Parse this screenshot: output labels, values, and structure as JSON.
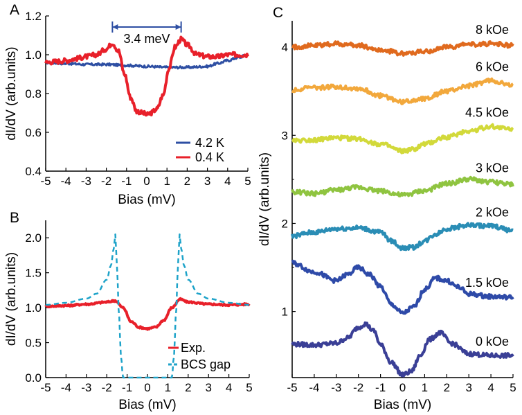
{
  "chart_data": [
    {
      "panel_label": "A",
      "type": "line",
      "xlabel": "Bias  (mV)",
      "ylabel": "dI/dV  (arb.units)",
      "xlim": [
        -5,
        5
      ],
      "ylim": [
        0.4,
        1.2
      ],
      "xticks": [
        "-5",
        "-4",
        "-3",
        "-2",
        "-1",
        "0",
        "1",
        "2",
        "3",
        "4",
        "5"
      ],
      "yticks": [
        "0.4",
        "0.6",
        "0.8",
        "1.0",
        "1.2"
      ],
      "annotation": "3.4 meV",
      "annotation_range": [
        -1.7,
        1.7
      ],
      "legend_position": "bottom-right",
      "series": [
        {
          "name": "4.2 K",
          "color": "#2e4fa3",
          "x": [
            -5,
            -4,
            -3,
            -2,
            -1,
            0,
            1,
            2,
            3,
            3.5,
            4,
            4.5,
            5
          ],
          "y": [
            0.96,
            0.955,
            0.95,
            0.95,
            0.945,
            0.94,
            0.935,
            0.935,
            0.94,
            0.955,
            0.97,
            0.985,
            1.0
          ]
        },
        {
          "name": "0.4 K",
          "color": "#e8202a",
          "x": [
            -5,
            -4.5,
            -4,
            -3.5,
            -3,
            -2.5,
            -2,
            -1.7,
            -1.4,
            -1.1,
            -0.8,
            -0.5,
            -0.2,
            0,
            0.2,
            0.5,
            0.8,
            1.1,
            1.4,
            1.7,
            2,
            2.5,
            3,
            3.5,
            4,
            4.5,
            5
          ],
          "y": [
            0.96,
            0.965,
            0.97,
            0.98,
            0.99,
            1.0,
            1.03,
            1.06,
            1.02,
            0.9,
            0.78,
            0.71,
            0.7,
            0.69,
            0.7,
            0.72,
            0.79,
            0.93,
            1.04,
            1.08,
            1.05,
            1.0,
            0.99,
            0.99,
            1.0,
            1.0,
            1.0
          ]
        }
      ]
    },
    {
      "panel_label": "B",
      "type": "line",
      "xlabel": "Bias  (mV)",
      "ylabel": "dI/dV  (arb.units)",
      "xlim": [
        -5,
        5
      ],
      "ylim": [
        0,
        2.25
      ],
      "xticks": [
        "-5",
        "-4",
        "-3",
        "-2",
        "-1",
        "0",
        "1",
        "2",
        "3",
        "4",
        "5"
      ],
      "yticks": [
        "0.0",
        "0.5",
        "1.0",
        "1.5",
        "2.0"
      ],
      "legend_position": "bottom-right",
      "series": [
        {
          "name": "Exp.",
          "color": "#e8202a",
          "x": [
            -5,
            -4,
            -3,
            -2,
            -1.6,
            -1.2,
            -0.8,
            -0.4,
            0,
            0.4,
            0.8,
            1.2,
            1.6,
            2,
            3,
            4,
            5
          ],
          "y": [
            1.02,
            1.03,
            1.05,
            1.08,
            1.1,
            1.0,
            0.8,
            0.72,
            0.7,
            0.72,
            0.82,
            1.0,
            1.12,
            1.08,
            1.05,
            1.04,
            1.05
          ]
        },
        {
          "name": "BCS gap",
          "color": "#1ea3c9",
          "x": [
            -5,
            -4,
            -3,
            -2.5,
            -2,
            -1.8,
            -1.65,
            -1.58,
            -1.5,
            -1.4,
            -1.3,
            -1.2,
            1.2,
            1.3,
            1.4,
            1.5,
            1.58,
            1.65,
            1.8,
            2,
            2.5,
            3,
            4,
            5
          ],
          "y": [
            1.04,
            1.07,
            1.13,
            1.2,
            1.4,
            1.6,
            1.85,
            2.05,
            1.6,
            0.9,
            0.3,
            0.0,
            0.0,
            0.3,
            0.9,
            1.6,
            2.05,
            1.85,
            1.6,
            1.4,
            1.2,
            1.13,
            1.07,
            1.04
          ]
        }
      ]
    },
    {
      "panel_label": "C",
      "type": "line",
      "xlabel": "Bias  (mV)",
      "ylabel": "dI/dV  (arb.units)",
      "xlim": [
        -5,
        5
      ],
      "ylim": [
        0.25,
        4.3
      ],
      "xticks": [
        "-5",
        "-4",
        "-3",
        "-2",
        "-1",
        "0",
        "1",
        "2",
        "3",
        "4",
        "5"
      ],
      "yticks": [
        "1",
        "2",
        "3",
        "4"
      ],
      "series": [
        {
          "name": "0 kOe",
          "color": "#3a3f96",
          "x": [
            -5,
            -4,
            -3,
            -2.5,
            -2,
            -1.7,
            -1.3,
            -1,
            -0.5,
            0,
            0.4,
            0.8,
            1.2,
            1.7,
            2.2,
            3,
            4,
            5
          ],
          "y": [
            0.63,
            0.62,
            0.64,
            0.7,
            0.82,
            0.86,
            0.78,
            0.62,
            0.42,
            0.28,
            0.32,
            0.5,
            0.68,
            0.76,
            0.64,
            0.52,
            0.5,
            0.5
          ]
        },
        {
          "name": "1.5 kOe",
          "color": "#2e4aa8",
          "x": [
            -5,
            -4,
            -3,
            -2.5,
            -2,
            -1.5,
            -1,
            -0.5,
            0,
            0.5,
            1,
            1.5,
            2,
            2.5,
            3,
            4,
            5
          ],
          "y": [
            1.55,
            1.45,
            1.35,
            1.42,
            1.5,
            1.42,
            1.28,
            1.08,
            0.98,
            1.05,
            1.25,
            1.38,
            1.35,
            1.28,
            1.2,
            1.17,
            1.16
          ]
        },
        {
          "name": "2 kOe",
          "color": "#2a8db5",
          "x": [
            -5,
            -4,
            -3,
            -2,
            -1,
            -0.5,
            0,
            0.5,
            1,
            1.5,
            2,
            3,
            4,
            5
          ],
          "y": [
            1.86,
            1.9,
            1.94,
            1.95,
            1.9,
            1.8,
            1.72,
            1.73,
            1.8,
            1.88,
            1.94,
            1.98,
            1.97,
            1.92
          ]
        },
        {
          "name": "3 kOe",
          "color": "#8fc440",
          "x": [
            -5,
            -4,
            -3,
            -2,
            -1,
            0,
            1,
            2,
            3,
            4,
            5
          ],
          "y": [
            2.36,
            2.34,
            2.38,
            2.41,
            2.37,
            2.32,
            2.37,
            2.45,
            2.5,
            2.47,
            2.44
          ]
        },
        {
          "name": "4.5 kOe",
          "color": "#d2d93a",
          "x": [
            -5,
            -4,
            -3,
            -2,
            -1,
            0,
            0.5,
            1,
            2,
            3,
            4,
            5
          ],
          "y": [
            2.94,
            2.95,
            2.97,
            2.96,
            2.9,
            2.82,
            2.84,
            2.9,
            2.98,
            3.05,
            3.1,
            3.07
          ]
        },
        {
          "name": "6 kOe",
          "color": "#f2a83c",
          "x": [
            -5,
            -4,
            -3,
            -2,
            -1,
            0,
            1,
            2,
            3,
            4,
            5
          ],
          "y": [
            3.52,
            3.54,
            3.55,
            3.53,
            3.45,
            3.38,
            3.42,
            3.5,
            3.56,
            3.62,
            3.56
          ]
        },
        {
          "name": "8 kOe",
          "color": "#e06a1e",
          "x": [
            -5,
            -4,
            -3,
            -2,
            -1,
            0,
            1,
            2,
            3,
            4,
            5
          ],
          "y": [
            4.0,
            4.02,
            4.04,
            4.02,
            3.97,
            3.93,
            3.95,
            4.0,
            4.03,
            4.04,
            4.02
          ]
        }
      ]
    }
  ]
}
